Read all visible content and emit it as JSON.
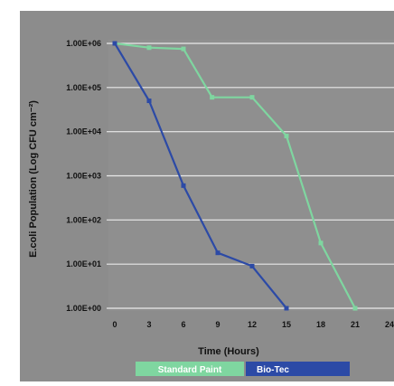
{
  "chart_data": {
    "type": "line",
    "title": "",
    "xlabel": "Time (Hours)",
    "ylabel": "E.coli Population (Log CFU cm⁻²)",
    "y_scale": "log",
    "ylim": [
      1,
      1000000
    ],
    "xlim": [
      0,
      24
    ],
    "x_ticks": [
      "0",
      "3",
      "6",
      "9",
      "12",
      "15",
      "18",
      "21",
      "24"
    ],
    "y_ticks": [
      "1.00E+06",
      "1.00E+05",
      "1.00E+04",
      "1.00E+03",
      "1.00E+02",
      "1.00E+01",
      "1.00E+00"
    ],
    "grid": true,
    "legend_position": "bottom",
    "series": [
      {
        "name": "Standard Paint",
        "color": "#7fd6a0",
        "x": [
          0,
          3,
          6,
          8.5,
          12,
          15,
          18,
          21
        ],
        "y": [
          1000000,
          800000,
          750000,
          60000,
          60000,
          8000,
          30,
          1
        ]
      },
      {
        "name": "Bio-Tec",
        "color": "#2c4aa6",
        "x": [
          0,
          3,
          6,
          9,
          12,
          15
        ],
        "y": [
          1000000,
          50000,
          600,
          18,
          9,
          1
        ]
      }
    ]
  }
}
